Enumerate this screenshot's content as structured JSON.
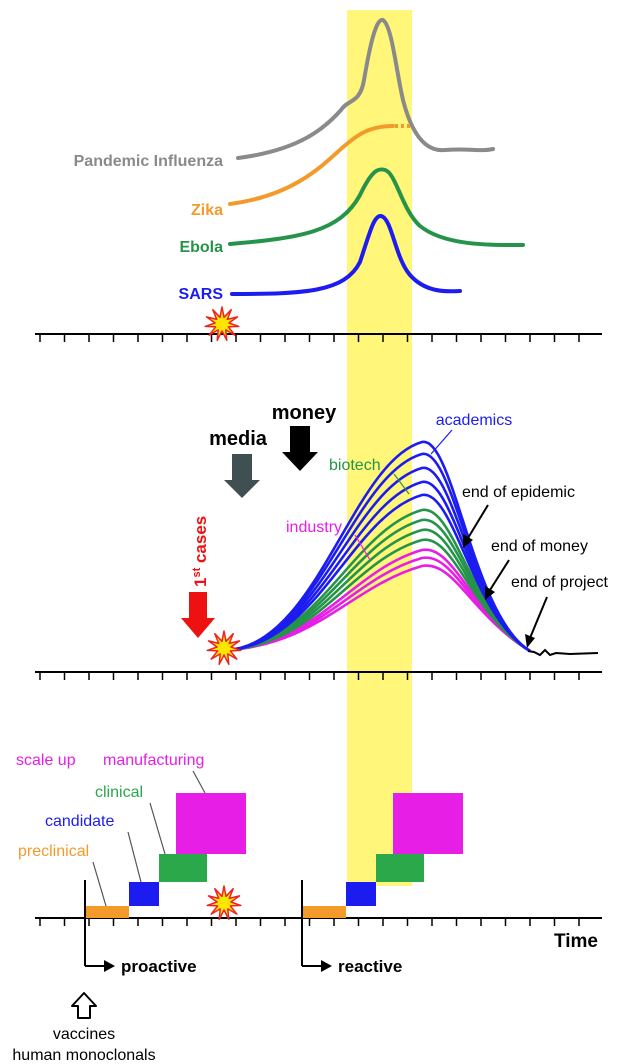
{
  "colors": {
    "highlight": "#fff67a",
    "influenza": "#8a8a8a",
    "zika": "#f39a2b",
    "ebola": "#25944a",
    "sars": "#1c1cf0",
    "academics": "#1c1cf0",
    "biotech": "#25944a",
    "industry": "#e61ee6",
    "first_cases": "#ee1111",
    "media_arrow": "#3f4f52",
    "money_arrow": "#000000",
    "preclinical": "#f39a2b",
    "candidate": "#1c1cf0",
    "clinical": "#2aa84a",
    "manufacturing": "#e61ee6"
  },
  "panel_top": {
    "labels": {
      "influenza": "Pandemic Influenza",
      "zika": "Zika",
      "ebola": "Ebola",
      "sars": "SARS"
    }
  },
  "panel_mid": {
    "money": "money",
    "media": "media",
    "first_cases_base": "1",
    "first_cases_sup": "st",
    "first_cases_rest": " cases",
    "academics": "academics",
    "biotech": "biotech",
    "industry": "industry",
    "end_epidemic": "end of epidemic",
    "end_money": "end of money",
    "end_project": "end of project"
  },
  "panel_bottom": {
    "scale_up": "scale up",
    "manufacturing": "manufacturing",
    "clinical": "clinical",
    "candidate": "candidate",
    "preclinical": "preclinical",
    "time": "Time",
    "proactive": "proactive",
    "reactive": "reactive",
    "vaccines": "vaccines",
    "monoclonals": "human monoclonals"
  }
}
